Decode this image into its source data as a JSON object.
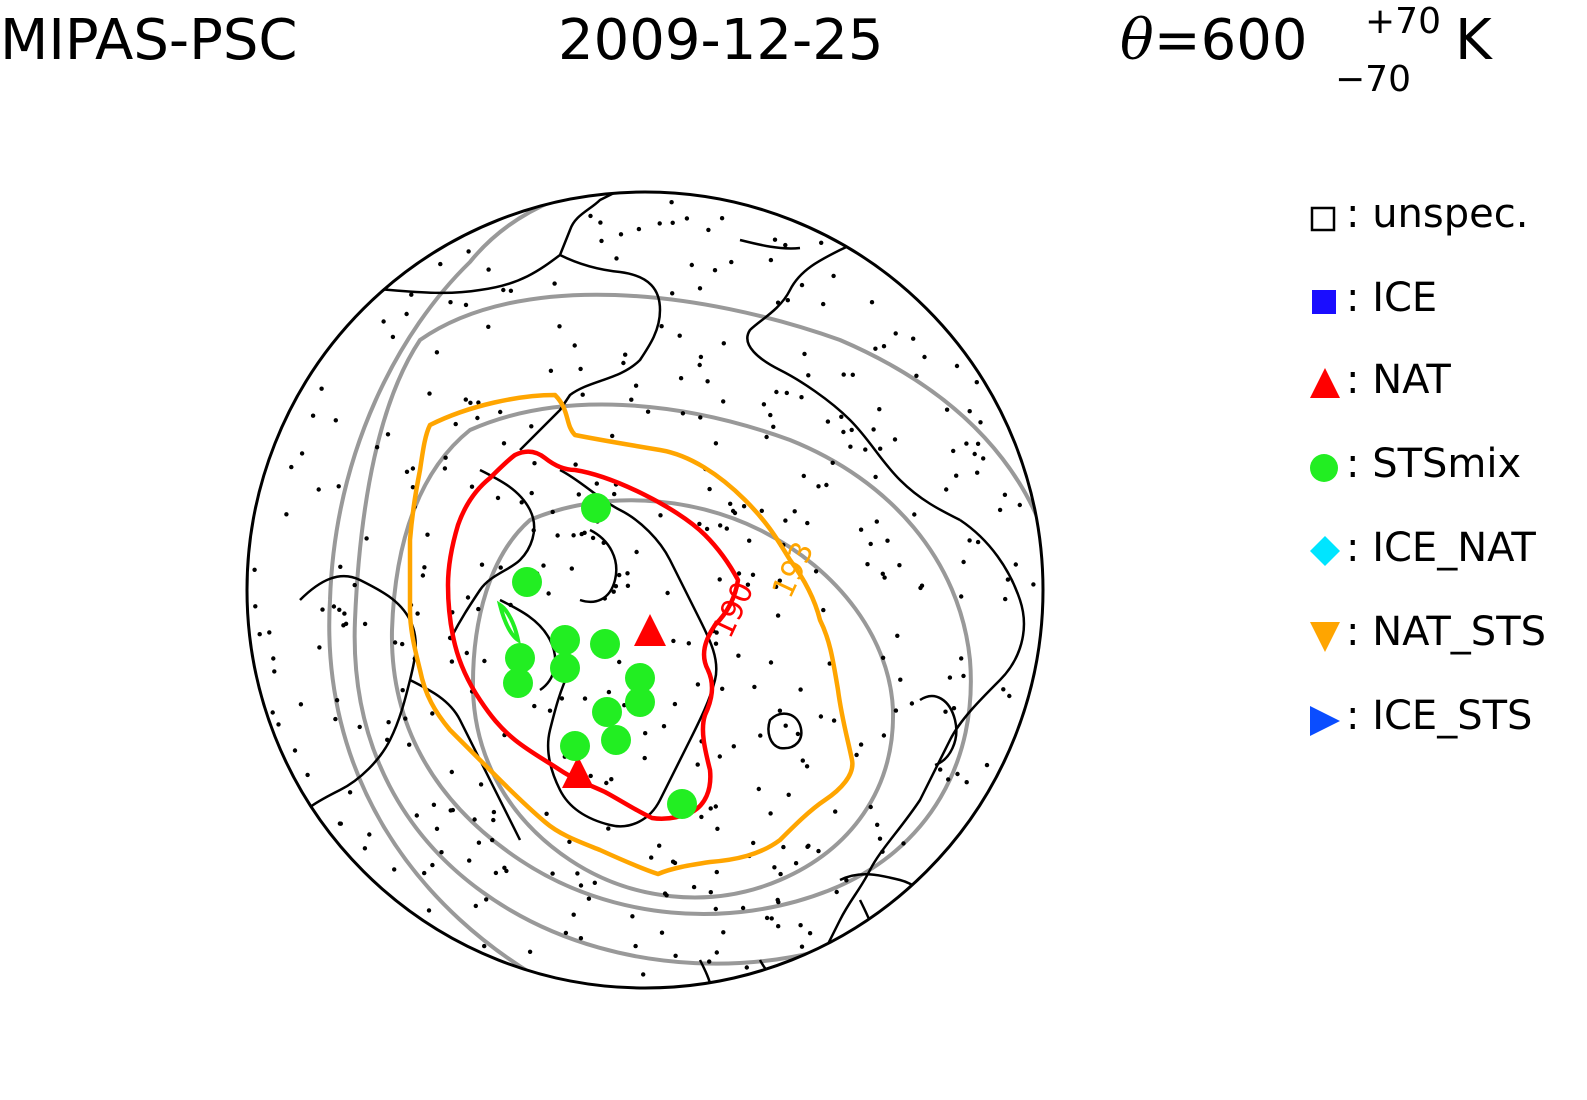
{
  "title": {
    "instrument": "MIPAS-PSC",
    "date": "2009-12-25",
    "theta_symbol": "θ",
    "theta_value": "=600",
    "theta_plus": "+70",
    "theta_minus": "−70",
    "theta_unit": "K"
  },
  "legend": [
    {
      "symbol": "□",
      "label": ": unspec.",
      "shape": "open-square",
      "color": "#000000"
    },
    {
      "symbol": "■",
      "label": ": ICE",
      "shape": "square",
      "color": "#1a0dff"
    },
    {
      "symbol": "▲",
      "label": ": NAT",
      "shape": "triangle-up",
      "color": "#ff0000"
    },
    {
      "symbol": "●",
      "label": ": STSmix",
      "shape": "circle",
      "color": "#22ee22"
    },
    {
      "symbol": "◆",
      "label": ": ICE_NAT",
      "shape": "diamond",
      "color": "#00e5ff"
    },
    {
      "symbol": "▼",
      "label": ": NAT_STS",
      "shape": "triangle-down",
      "color": "#ffa500"
    },
    {
      "symbol": "▶",
      "label": ": ICE_STS",
      "shape": "triangle-right",
      "color": "#0a4dff"
    }
  ],
  "contours": [
    {
      "label": "190",
      "color": "#ff0000"
    },
    {
      "label": "193",
      "color": "#ffa500"
    }
  ],
  "colors": {
    "coastline": "#000000",
    "latitude_circles": "#999999",
    "background": "#ffffff"
  }
}
